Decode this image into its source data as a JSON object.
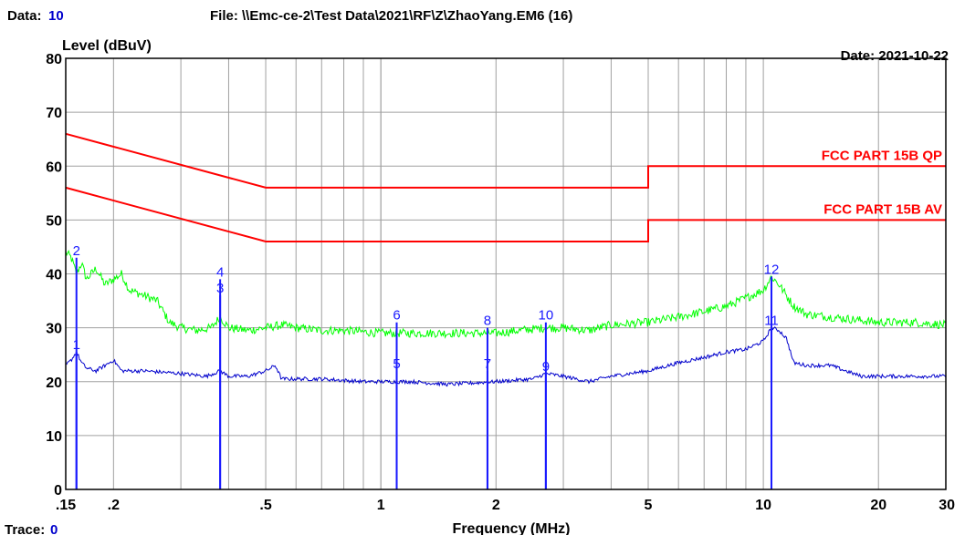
{
  "header": {
    "data_label": "Data:",
    "data_value": "10",
    "file_text": "File: \\\\Emc-ce-2\\Test Data\\2021\\RF\\Z\\ZhaoYang.EM6  (16)",
    "date_text": "Date: 2021-10-22"
  },
  "footer": {
    "trace_label": "Trace:",
    "trace_value": "0"
  },
  "colors": {
    "qp_trace": "#00ff00",
    "av_trace": "#0000cc",
    "limit": "#ff0000",
    "marker": "#1a1aff",
    "grid": "#a0a0a0"
  },
  "chart_data": {
    "type": "line",
    "title": "",
    "xlabel": "Frequency (MHz)",
    "ylabel": "Level (dBuV)",
    "x_scale": "log",
    "xlim": [
      0.15,
      30
    ],
    "ylim": [
      0,
      80
    ],
    "grid": true,
    "y_ticks": [
      0,
      10,
      20,
      30,
      40,
      50,
      60,
      70,
      80
    ],
    "x_ticks": [
      {
        "value": 0.15,
        "label": ".15"
      },
      {
        "value": 0.2,
        "label": ".2"
      },
      {
        "value": 0.5,
        "label": ".5"
      },
      {
        "value": 1,
        "label": "1"
      },
      {
        "value": 2,
        "label": "2"
      },
      {
        "value": 5,
        "label": "5"
      },
      {
        "value": 10,
        "label": "10"
      },
      {
        "value": 20,
        "label": "20"
      },
      {
        "value": 30,
        "label": "30"
      }
    ],
    "limits": [
      {
        "name": "FCC PART 15B QP",
        "points": [
          [
            0.15,
            66
          ],
          [
            0.5,
            56
          ],
          [
            5,
            56
          ],
          [
            5,
            60
          ],
          [
            30,
            60
          ]
        ]
      },
      {
        "name": "FCC PART 15B AV",
        "points": [
          [
            0.15,
            56
          ],
          [
            0.5,
            46
          ],
          [
            5,
            46
          ],
          [
            5,
            50
          ],
          [
            30,
            50
          ]
        ]
      }
    ],
    "series": [
      {
        "key": "qp",
        "points": [
          [
            0.15,
            44
          ],
          [
            0.155,
            43
          ],
          [
            0.16,
            40
          ],
          [
            0.165,
            42
          ],
          [
            0.17,
            39
          ],
          [
            0.18,
            41
          ],
          [
            0.19,
            38
          ],
          [
            0.2,
            39
          ],
          [
            0.21,
            40
          ],
          [
            0.22,
            37
          ],
          [
            0.24,
            36
          ],
          [
            0.26,
            35
          ],
          [
            0.28,
            31
          ],
          [
            0.3,
            30
          ],
          [
            0.33,
            29.5
          ],
          [
            0.36,
            30
          ],
          [
            0.38,
            32
          ],
          [
            0.4,
            30
          ],
          [
            0.45,
            29.5
          ],
          [
            0.5,
            30
          ],
          [
            0.55,
            30.5
          ],
          [
            0.6,
            30
          ],
          [
            0.7,
            29.5
          ],
          [
            0.8,
            29.5
          ],
          [
            1,
            29
          ],
          [
            1.2,
            29
          ],
          [
            1.5,
            29
          ],
          [
            2,
            29
          ],
          [
            2.3,
            29.5
          ],
          [
            2.7,
            30
          ],
          [
            3,
            30
          ],
          [
            3.5,
            29.5
          ],
          [
            4,
            30.5
          ],
          [
            5,
            31
          ],
          [
            6,
            32
          ],
          [
            7,
            33
          ],
          [
            8,
            34
          ],
          [
            9,
            35.5
          ],
          [
            10,
            37
          ],
          [
            10.5,
            39.5
          ],
          [
            11,
            38
          ],
          [
            12,
            34
          ],
          [
            13,
            32.5
          ],
          [
            15,
            32
          ],
          [
            20,
            31
          ],
          [
            25,
            31
          ],
          [
            30,
            30.5
          ]
        ]
      },
      {
        "key": "av",
        "points": [
          [
            0.15,
            23
          ],
          [
            0.155,
            24
          ],
          [
            0.16,
            25.5
          ],
          [
            0.165,
            23.5
          ],
          [
            0.17,
            22.5
          ],
          [
            0.18,
            22
          ],
          [
            0.19,
            23
          ],
          [
            0.2,
            24
          ],
          [
            0.21,
            22
          ],
          [
            0.24,
            22
          ],
          [
            0.3,
            21.5
          ],
          [
            0.35,
            21
          ],
          [
            0.38,
            22
          ],
          [
            0.4,
            21
          ],
          [
            0.45,
            21
          ],
          [
            0.5,
            22
          ],
          [
            0.53,
            23
          ],
          [
            0.55,
            20.5
          ],
          [
            0.7,
            20.5
          ],
          [
            0.9,
            20
          ],
          [
            1.2,
            20
          ],
          [
            1.5,
            19.5
          ],
          [
            2,
            20
          ],
          [
            2.5,
            20.5
          ],
          [
            2.7,
            21.5
          ],
          [
            3,
            21
          ],
          [
            3.5,
            20
          ],
          [
            4,
            21
          ],
          [
            5,
            22
          ],
          [
            6,
            23.5
          ],
          [
            7,
            24.5
          ],
          [
            8,
            25.5
          ],
          [
            9,
            26
          ],
          [
            10,
            27.5
          ],
          [
            10.5,
            30
          ],
          [
            11,
            29.5
          ],
          [
            11.5,
            28
          ],
          [
            12,
            23.5
          ],
          [
            13,
            23
          ],
          [
            15,
            23
          ],
          [
            18,
            21
          ],
          [
            20,
            21
          ],
          [
            25,
            21
          ],
          [
            30,
            21
          ]
        ]
      }
    ],
    "markers": [
      {
        "label": "1",
        "x": 0.16,
        "y": 25.5
      },
      {
        "label": "2",
        "x": 0.16,
        "y": 43
      },
      {
        "label": "3",
        "x": 0.38,
        "y": 36
      },
      {
        "label": "4",
        "x": 0.38,
        "y": 39
      },
      {
        "label": "5",
        "x": 1.1,
        "y": 22
      },
      {
        "label": "6",
        "x": 1.1,
        "y": 31
      },
      {
        "label": "7",
        "x": 1.9,
        "y": 22
      },
      {
        "label": "8",
        "x": 1.9,
        "y": 30
      },
      {
        "label": "9",
        "x": 2.7,
        "y": 21.5
      },
      {
        "label": "10",
        "x": 2.7,
        "y": 31
      },
      {
        "label": "11",
        "x": 10.5,
        "y": 30
      },
      {
        "label": "12",
        "x": 10.5,
        "y": 39.5
      }
    ]
  }
}
